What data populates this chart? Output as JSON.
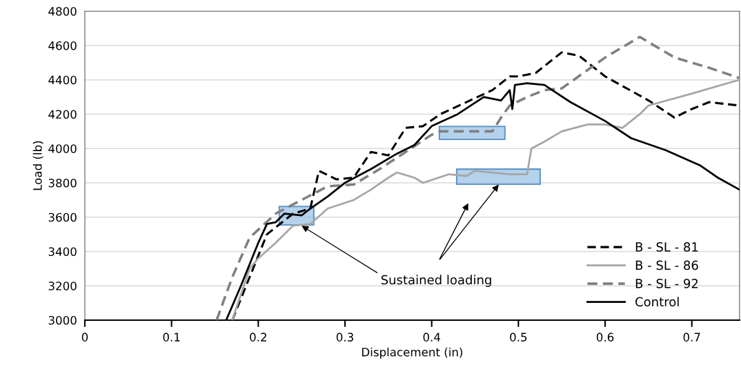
{
  "chart_data": {
    "type": "line",
    "xlabel": "Displacement (in)",
    "ylabel": "Load (lb)",
    "xlim": [
      0,
      0.755
    ],
    "xticks": [
      0,
      0.1,
      0.2,
      0.3,
      0.4,
      0.5,
      0.6,
      0.7
    ],
    "ylim": [
      3000,
      4800
    ],
    "yticks": [
      3000,
      3200,
      3400,
      3600,
      3800,
      4000,
      4200,
      4400,
      4600,
      4800
    ],
    "grid": "y",
    "legend": "bottom right",
    "marker": "none",
    "annotations": [
      {
        "text": "Sustained loading",
        "x": 0.25,
        "y": 3550
      }
    ],
    "series": [
      {
        "name": "B - SL - 81",
        "color": "#000000",
        "line_style": "dashed",
        "x": [
          0.17,
          0.19,
          0.21,
          0.24,
          0.26,
          0.27,
          0.29,
          0.31,
          0.33,
          0.35,
          0.37,
          0.39,
          0.41,
          0.44,
          0.47,
          0.49,
          0.5,
          0.52,
          0.55,
          0.57,
          0.6,
          0.65,
          0.68,
          0.7,
          0.72,
          0.755
        ],
        "values": [
          3000,
          3250,
          3500,
          3620,
          3650,
          3870,
          3820,
          3830,
          3980,
          3960,
          4120,
          4130,
          4200,
          4270,
          4340,
          4420,
          4420,
          4440,
          4560,
          4540,
          4420,
          4280,
          4180,
          4230,
          4270,
          4250
        ]
      },
      {
        "name": "B - SL - 86",
        "color": "#a6a6a6",
        "line_style": "solid",
        "x": [
          0.17,
          0.19,
          0.2,
          0.22,
          0.24,
          0.26,
          0.28,
          0.31,
          0.33,
          0.35,
          0.36,
          0.38,
          0.39,
          0.42,
          0.44,
          0.45,
          0.49,
          0.51,
          0.515,
          0.53,
          0.55,
          0.58,
          0.6,
          0.62,
          0.64,
          0.65,
          0.7,
          0.755
        ],
        "values": [
          3000,
          3300,
          3360,
          3450,
          3550,
          3560,
          3650,
          3700,
          3760,
          3830,
          3860,
          3830,
          3800,
          3850,
          3840,
          3870,
          3850,
          3850,
          4000,
          4040,
          4100,
          4140,
          4140,
          4120,
          4200,
          4250,
          4320,
          4400
        ]
      },
      {
        "name": "B - SL - 92",
        "color": "#808080",
        "line_style": "dashed",
        "x": [
          0.152,
          0.17,
          0.19,
          0.22,
          0.25,
          0.28,
          0.31,
          0.34,
          0.37,
          0.4,
          0.41,
          0.47,
          0.48,
          0.49,
          0.51,
          0.53,
          0.55,
          0.6,
          0.64,
          0.68,
          0.72,
          0.755
        ],
        "values": [
          3000,
          3250,
          3480,
          3620,
          3700,
          3780,
          3790,
          3880,
          3980,
          4080,
          4100,
          4100,
          4180,
          4250,
          4300,
          4340,
          4350,
          4530,
          4650,
          4530,
          4470,
          4410
        ]
      },
      {
        "name": "Control",
        "color": "#000000",
        "line_style": "solid",
        "x": [
          0.163,
          0.18,
          0.2,
          0.21,
          0.22,
          0.23,
          0.25,
          0.26,
          0.28,
          0.3,
          0.33,
          0.36,
          0.38,
          0.4,
          0.43,
          0.46,
          0.48,
          0.49,
          0.493,
          0.496,
          0.51,
          0.53,
          0.56,
          0.6,
          0.63,
          0.67,
          0.71,
          0.73,
          0.755
        ],
        "values": [
          3000,
          3200,
          3450,
          3560,
          3570,
          3620,
          3610,
          3650,
          3720,
          3800,
          3880,
          3970,
          4020,
          4130,
          4200,
          4300,
          4280,
          4340,
          4230,
          4370,
          4380,
          4370,
          4270,
          4160,
          4060,
          3990,
          3900,
          3830,
          3760
        ]
      }
    ]
  }
}
